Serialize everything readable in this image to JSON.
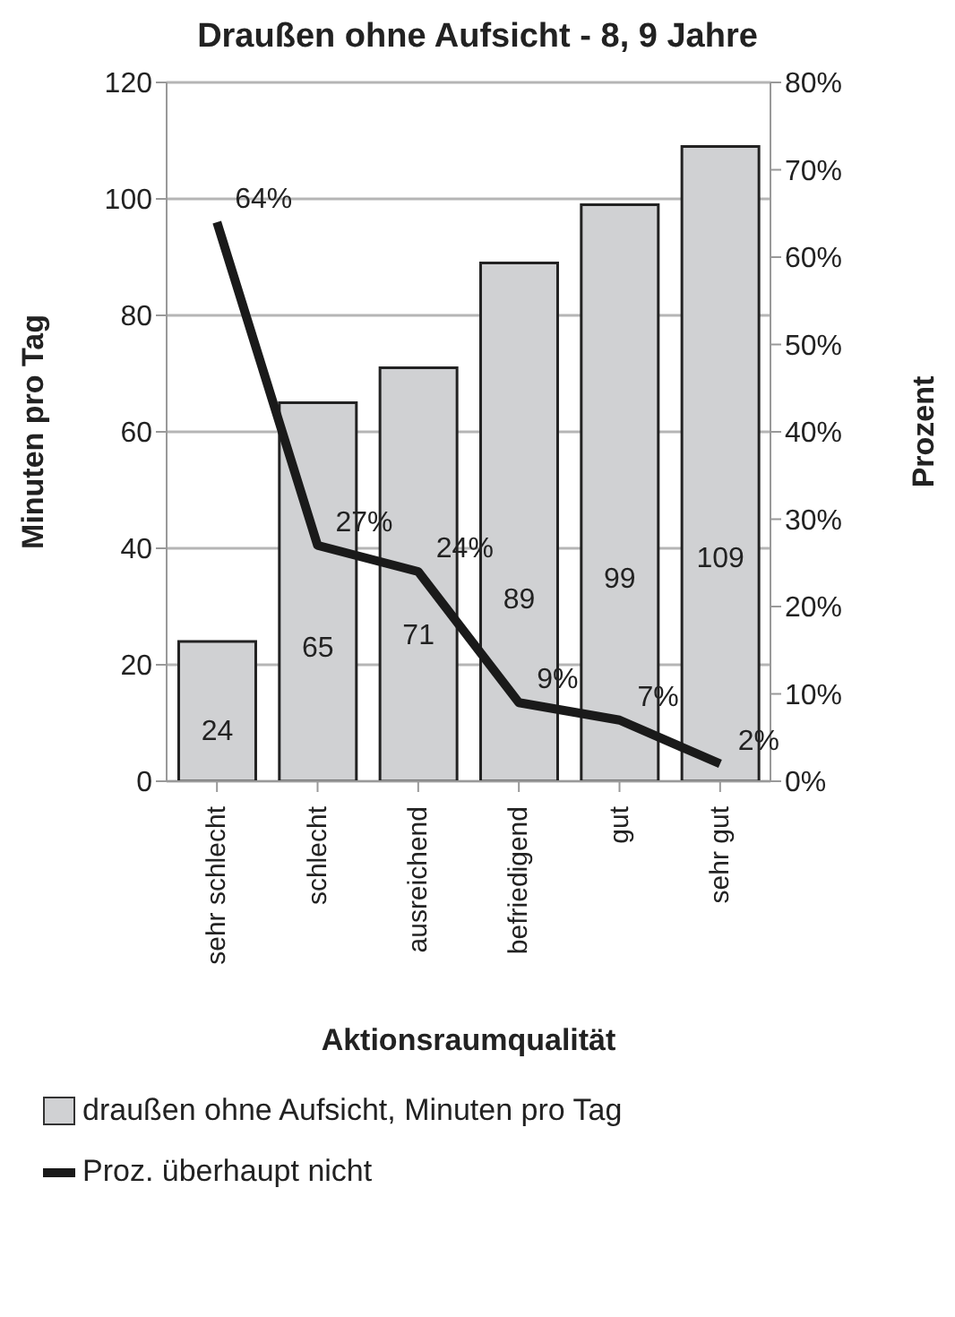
{
  "chart_data": {
    "type": "bar",
    "title": "Draußen ohne Aufsicht - 8, 9 Jahre",
    "xlabel": "Aktionsraumqualität",
    "ylabel": "Minuten pro Tag",
    "y2label": "Prozent",
    "categories": [
      "sehr schlecht",
      "schlecht",
      "ausreichend",
      "befriedigend",
      "gut",
      "sehr gut"
    ],
    "series": [
      {
        "name": "draußen ohne Aufsicht, Minuten pro Tag",
        "color": "#d0d1d3",
        "values": [
          24,
          65,
          71,
          89,
          99,
          109
        ]
      },
      {
        "name": "Proz. überhaupt nicht",
        "type": "line",
        "axis": "y2",
        "color": "#1a1a1a",
        "values": [
          64,
          27,
          24,
          9,
          7,
          2
        ],
        "value_labels": [
          "64%",
          "27%",
          "24%",
          "9%",
          "7%",
          "2%"
        ]
      }
    ],
    "data_labels": true,
    "ylim": [
      0,
      120
    ],
    "yticks": [
      0,
      20,
      40,
      60,
      80,
      100,
      120
    ],
    "y2lim": [
      0,
      80
    ],
    "y2ticks": [
      {
        "value": 0,
        "label": "0%"
      },
      {
        "value": 10,
        "label": "10%"
      },
      {
        "value": 20,
        "label": "20%"
      },
      {
        "value": 30,
        "label": "30%"
      },
      {
        "value": 40,
        "label": "40%"
      },
      {
        "value": 50,
        "label": "50%"
      },
      {
        "value": 60,
        "label": "60%"
      },
      {
        "value": 70,
        "label": "70%"
      },
      {
        "value": 80,
        "label": "80%"
      }
    ],
    "grid": "y",
    "legend": "bottom",
    "marker": "none",
    "line_style": "solid"
  }
}
